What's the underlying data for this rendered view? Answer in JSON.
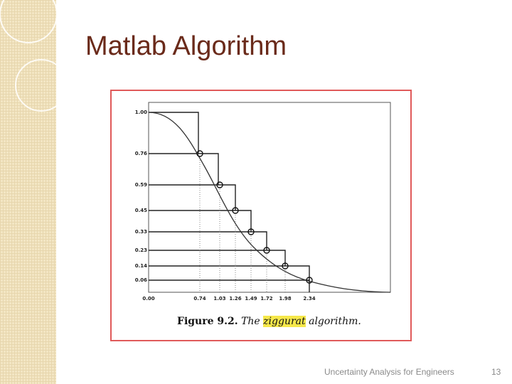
{
  "slide": {
    "title": "Matlab Algorithm",
    "footer": "Uncertainty Analysis for Engineers",
    "page_number": "13"
  },
  "figure": {
    "y_labels": [
      "1.00",
      "0.76",
      "0.59",
      "0.45",
      "0.33",
      "0.23",
      "0.14",
      "0.06"
    ],
    "x_labels": [
      "0.00",
      "0.74",
      "1.03",
      "1.26",
      "1.49",
      "1.72",
      "1.98",
      "2.34"
    ],
    "caption": {
      "number": "Figure 9.2.",
      "word1": "The",
      "highlight": "ziggurat",
      "rest": "algorithm."
    }
  },
  "colors": {
    "title": "#6a2a1a",
    "frame_border": "#e05a5a",
    "side_band": "#f3e6c4",
    "highlight": "#f6e84a"
  }
}
